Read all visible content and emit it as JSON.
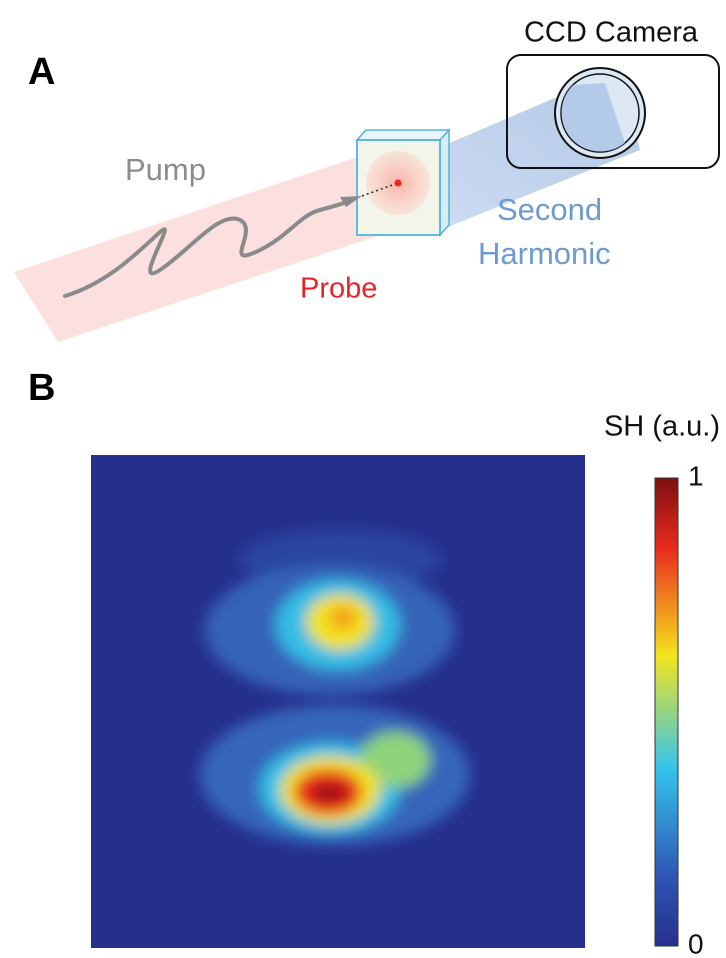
{
  "panel_a": {
    "label": "A",
    "camera_label": "CCD Camera",
    "pump_label": "Pump",
    "probe_label": "Probe",
    "second_harmonic_label": [
      "Second",
      "Harmonic"
    ]
  },
  "panel_b": {
    "label": "B",
    "colorbar": {
      "title": "SH (a.u.)",
      "range": [
        0,
        1
      ],
      "ticks": [
        0,
        1
      ]
    }
  }
}
